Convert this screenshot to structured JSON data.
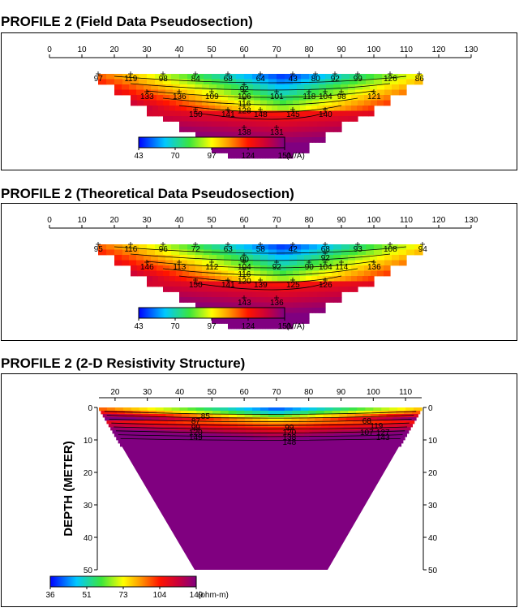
{
  "chart_data": [
    {
      "type": "heatmap",
      "title": "PROFILE 2 (Field Data Pseudosection)",
      "xlim": [
        0,
        130
      ],
      "xticks": [
        0,
        10,
        20,
        30,
        40,
        50,
        60,
        70,
        80,
        90,
        100,
        110,
        120,
        130
      ],
      "colorbar": {
        "ticks": [
          "43",
          "70",
          "97",
          "124",
          "151"
        ],
        "unit": "(V/A)",
        "min": 43,
        "max": 151
      },
      "labels": [
        {
          "x": 15,
          "level": 1,
          "text": "97"
        },
        {
          "x": 25,
          "level": 1,
          "text": "119"
        },
        {
          "x": 35,
          "level": 1,
          "text": "98"
        },
        {
          "x": 45,
          "level": 1,
          "text": "84"
        },
        {
          "x": 55,
          "level": 1,
          "text": "68"
        },
        {
          "x": 65,
          "level": 1,
          "text": "64"
        },
        {
          "x": 75,
          "level": 1,
          "text": "43"
        },
        {
          "x": 82,
          "level": 1,
          "text": "80"
        },
        {
          "x": 88,
          "level": 1,
          "text": "92"
        },
        {
          "x": 95,
          "level": 1,
          "text": "99"
        },
        {
          "x": 105,
          "level": 1,
          "text": "126"
        },
        {
          "x": 114,
          "level": 1,
          "text": "86"
        },
        {
          "x": 60,
          "level": 1.6,
          "text": "92"
        },
        {
          "x": 60,
          "level": 2,
          "text": "106"
        },
        {
          "x": 60,
          "level": 2.4,
          "text": "116"
        },
        {
          "x": 60,
          "level": 2.8,
          "text": "128"
        },
        {
          "x": 85,
          "level": 2,
          "text": "104"
        },
        {
          "x": 30,
          "level": 2,
          "text": "133"
        },
        {
          "x": 40,
          "level": 2,
          "text": "136"
        },
        {
          "x": 50,
          "level": 2,
          "text": "109"
        },
        {
          "x": 70,
          "level": 2,
          "text": "101"
        },
        {
          "x": 80,
          "level": 2,
          "text": "118"
        },
        {
          "x": 90,
          "level": 2,
          "text": "98"
        },
        {
          "x": 100,
          "level": 2,
          "text": "121"
        },
        {
          "x": 45,
          "level": 3,
          "text": "150"
        },
        {
          "x": 55,
          "level": 3,
          "text": "141"
        },
        {
          "x": 65,
          "level": 3,
          "text": "148"
        },
        {
          "x": 75,
          "level": 3,
          "text": "145"
        },
        {
          "x": 85,
          "level": 3,
          "text": "140"
        },
        {
          "x": 60,
          "level": 4,
          "text": "138"
        },
        {
          "x": 70,
          "level": 4,
          "text": "131"
        }
      ]
    },
    {
      "type": "heatmap",
      "title": "PROFILE 2 (Theoretical Data Pseudosection)",
      "xlim": [
        0,
        130
      ],
      "xticks": [
        0,
        10,
        20,
        30,
        40,
        50,
        60,
        70,
        80,
        90,
        100,
        110,
        120,
        130
      ],
      "colorbar": {
        "ticks": [
          "43",
          "70",
          "97",
          "124",
          "151"
        ],
        "unit": "(V/A)",
        "min": 43,
        "max": 151
      },
      "labels": [
        {
          "x": 15,
          "level": 1,
          "text": "95"
        },
        {
          "x": 25,
          "level": 1,
          "text": "116"
        },
        {
          "x": 35,
          "level": 1,
          "text": "96"
        },
        {
          "x": 45,
          "level": 1,
          "text": "72"
        },
        {
          "x": 55,
          "level": 1,
          "text": "63"
        },
        {
          "x": 65,
          "level": 1,
          "text": "58"
        },
        {
          "x": 75,
          "level": 1,
          "text": "42"
        },
        {
          "x": 85,
          "level": 1,
          "text": "68"
        },
        {
          "x": 95,
          "level": 1,
          "text": "93"
        },
        {
          "x": 105,
          "level": 1,
          "text": "108"
        },
        {
          "x": 115,
          "level": 1,
          "text": "94"
        },
        {
          "x": 60,
          "level": 1.6,
          "text": "90"
        },
        {
          "x": 60,
          "level": 2,
          "text": "104"
        },
        {
          "x": 60,
          "level": 2.4,
          "text": "116"
        },
        {
          "x": 60,
          "level": 2.8,
          "text": "120"
        },
        {
          "x": 85,
          "level": 1.5,
          "text": "92"
        },
        {
          "x": 85,
          "level": 2,
          "text": "104"
        },
        {
          "x": 30,
          "level": 2,
          "text": "146"
        },
        {
          "x": 40,
          "level": 2,
          "text": "113"
        },
        {
          "x": 50,
          "level": 2,
          "text": "112"
        },
        {
          "x": 70,
          "level": 2,
          "text": "92"
        },
        {
          "x": 80,
          "level": 2,
          "text": "90"
        },
        {
          "x": 90,
          "level": 2,
          "text": "114"
        },
        {
          "x": 100,
          "level": 2,
          "text": "136"
        },
        {
          "x": 45,
          "level": 3,
          "text": "150"
        },
        {
          "x": 55,
          "level": 3,
          "text": "141"
        },
        {
          "x": 65,
          "level": 3,
          "text": "139"
        },
        {
          "x": 75,
          "level": 3,
          "text": "125"
        },
        {
          "x": 85,
          "level": 3,
          "text": "126"
        },
        {
          "x": 60,
          "level": 4,
          "text": "143"
        },
        {
          "x": 70,
          "level": 4,
          "text": "136"
        }
      ]
    },
    {
      "type": "heatmap",
      "title": "PROFILE 2 (2-D Resistivity Structure)",
      "xticks": [
        20,
        30,
        40,
        50,
        60,
        70,
        80,
        90,
        100,
        110
      ],
      "xlim": [
        15,
        115
      ],
      "yticks": [
        0,
        10,
        20,
        30,
        40,
        50
      ],
      "ylim": [
        0,
        50
      ],
      "ylabel": "DEPTH (METER)",
      "colorbar": {
        "ticks": [
          "36",
          "51",
          "73",
          "104",
          "149"
        ],
        "unit": "(ohm-m)",
        "min": 36,
        "max": 149
      },
      "labels": [
        {
          "x": 45,
          "depth": 4,
          "text": "87"
        },
        {
          "x": 48,
          "depth": 2.5,
          "text": "85"
        },
        {
          "x": 45,
          "depth": 6,
          "text": "99"
        },
        {
          "x": 45,
          "depth": 7.5,
          "text": "120"
        },
        {
          "x": 45,
          "depth": 9,
          "text": "149"
        },
        {
          "x": 74,
          "depth": 6,
          "text": "99"
        },
        {
          "x": 74,
          "depth": 7.5,
          "text": "120"
        },
        {
          "x": 74,
          "depth": 9,
          "text": "138"
        },
        {
          "x": 74,
          "depth": 10.5,
          "text": "148"
        },
        {
          "x": 98,
          "depth": 4,
          "text": "68"
        },
        {
          "x": 101,
          "depth": 5.5,
          "text": "119"
        },
        {
          "x": 98,
          "depth": 7.5,
          "text": "107"
        },
        {
          "x": 103,
          "depth": 7.5,
          "text": "127"
        },
        {
          "x": 103,
          "depth": 9,
          "text": "143"
        }
      ]
    }
  ]
}
